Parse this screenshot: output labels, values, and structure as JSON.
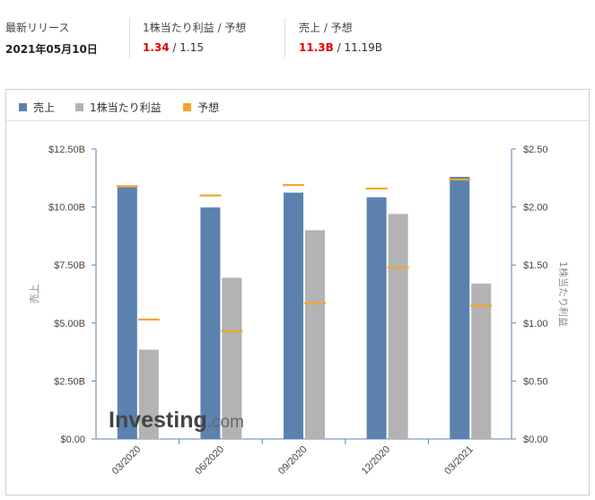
{
  "header": {
    "release_label": "最新リリース",
    "release_date": "2021年05月10日",
    "eps_label": "1株当たり利益 / 予想",
    "eps_actual": "1.34",
    "eps_forecast": " / 1.15",
    "rev_label": "売上 / 予想",
    "rev_actual": "11.3B",
    "rev_forecast": " / 11.19B"
  },
  "legend": {
    "revenue": "売上",
    "eps": "1株当たり利益",
    "forecast": "予想"
  },
  "colors": {
    "revenue": "#5b82af",
    "eps": "#b3b3b3",
    "forecast": "#f2a530",
    "positive": "#e60000"
  },
  "chart_data": {
    "type": "bar",
    "categories": [
      "03/2020",
      "06/2020",
      "09/2020",
      "12/2020",
      "03/2021"
    ],
    "series": [
      {
        "name": "売上",
        "axis": "left",
        "values": [
          10.85,
          9.98,
          10.62,
          10.42,
          11.3
        ],
        "forecast": [
          10.9,
          10.5,
          10.95,
          10.8,
          11.19
        ]
      },
      {
        "name": "1株当たり利益",
        "axis": "right",
        "values": [
          0.77,
          1.39,
          1.8,
          1.94,
          1.34
        ],
        "forecast": [
          1.03,
          0.93,
          1.17,
          1.48,
          1.15
        ]
      }
    ],
    "ylabel_left": "売上",
    "ylabel_right": "1株当たり利益",
    "ylim_left": [
      0,
      12.5
    ],
    "ylim_right": [
      0,
      2.5
    ],
    "yticks_left": [
      "$0.00",
      "$2.50B",
      "$5.00B",
      "$7.50B",
      "$10.00B",
      "$12.50B"
    ],
    "yticks_right": [
      "$0.00",
      "$0.50",
      "$1.00",
      "$1.50",
      "$2.00",
      "$2.50"
    ],
    "watermark": "Investing.com"
  }
}
